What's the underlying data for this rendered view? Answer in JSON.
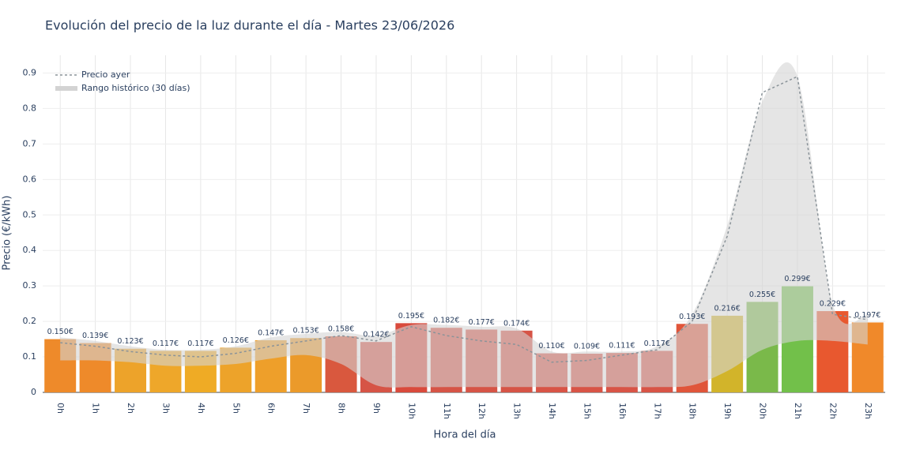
{
  "chart_data": {
    "type": "bar",
    "title": "Evolución del precio de la luz durante el día - Martes 23/06/2026",
    "xlabel": "Hora del día",
    "ylabel": "Precio (€/kWh)",
    "categories": [
      "0h",
      "1h",
      "2h",
      "3h",
      "4h",
      "5h",
      "6h",
      "7h",
      "8h",
      "9h",
      "10h",
      "11h",
      "12h",
      "13h",
      "14h",
      "15h",
      "16h",
      "17h",
      "18h",
      "19h",
      "20h",
      "21h",
      "22h",
      "23h"
    ],
    "values": [
      0.15,
      0.139,
      0.123,
      0.117,
      0.117,
      0.126,
      0.147,
      0.153,
      0.158,
      0.142,
      0.195,
      0.182,
      0.177,
      0.174,
      0.11,
      0.109,
      0.111,
      0.117,
      0.193,
      0.216,
      0.255,
      0.299,
      0.229,
      0.197
    ],
    "value_labels": [
      "0.150€",
      "0.139€",
      "0.123€",
      "0.117€",
      "0.117€",
      "0.126€",
      "0.147€",
      "0.153€",
      "0.158€",
      "0.142€",
      "0.195€",
      "0.182€",
      "0.177€",
      "0.174€",
      "0.110€",
      "0.109€",
      "0.111€",
      "0.117€",
      "0.193€",
      "0.216€",
      "0.255€",
      "0.299€",
      "0.229€",
      "0.197€"
    ],
    "colors": [
      "#ee8a2a",
      "#ee8a2a",
      "#eda32a",
      "#eea72a",
      "#efab25",
      "#eda32a",
      "#ee9f2a",
      "#eb9a2a",
      "#d9583e",
      "#d65446",
      "#d94a3c",
      "#d65446",
      "#d65446",
      "#d65446",
      "#d85446",
      "#d85446",
      "#d85446",
      "#d85446",
      "#e0553a",
      "#d2b42a",
      "#7ab94a",
      "#72c04a",
      "#e8582f",
      "#f0892a"
    ],
    "lines": [
      {
        "name": "Precio ayer",
        "color": "#8a9399",
        "values": [
          0.14,
          0.13,
          0.115,
          0.105,
          0.1,
          0.11,
          0.13,
          0.145,
          0.16,
          0.145,
          0.185,
          0.16,
          0.145,
          0.135,
          0.085,
          0.09,
          0.105,
          0.12,
          0.2,
          0.44,
          0.845,
          0.89,
          0.22,
          0.205
        ]
      }
    ],
    "bands": [
      {
        "name": "Rango histórico (30 días)",
        "color": "#d3d3d3",
        "upper": [
          0.155,
          0.145,
          0.13,
          0.12,
          0.12,
          0.13,
          0.155,
          0.165,
          0.17,
          0.16,
          0.19,
          0.19,
          0.185,
          0.18,
          0.115,
          0.115,
          0.115,
          0.13,
          0.22,
          0.47,
          0.82,
          0.89,
          0.25,
          0.22
        ],
        "lower": [
          0.09,
          0.09,
          0.085,
          0.075,
          0.075,
          0.08,
          0.095,
          0.105,
          0.08,
          0.02,
          0.015,
          0.015,
          0.015,
          0.015,
          0.015,
          0.015,
          0.015,
          0.015,
          0.02,
          0.06,
          0.12,
          0.145,
          0.145,
          0.135
        ]
      }
    ],
    "ylim": [
      0,
      0.95
    ],
    "yticks": [
      0,
      0.1,
      0.2,
      0.3,
      0.4,
      0.5,
      0.6,
      0.7,
      0.8,
      0.9
    ],
    "grid": true
  }
}
